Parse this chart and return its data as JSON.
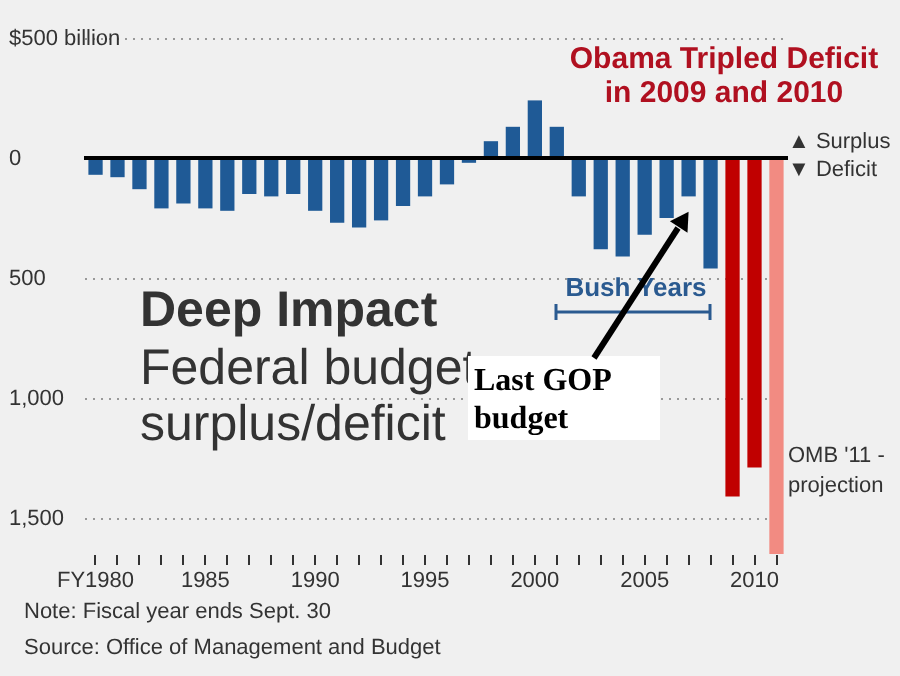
{
  "chart_data": {
    "type": "bar",
    "title": "Deep Impact",
    "subtitle": "Federal budget surplus/deficit",
    "categories": [
      "FY1980",
      null,
      null,
      null,
      null,
      "1985",
      null,
      null,
      null,
      null,
      "1990",
      null,
      null,
      null,
      null,
      "1995",
      null,
      null,
      null,
      null,
      "2000",
      null,
      null,
      null,
      null,
      "2005",
      null,
      null,
      null,
      null,
      "2010",
      null
    ],
    "values": [
      -70,
      -80,
      -130,
      -210,
      -190,
      -210,
      -220,
      -150,
      -160,
      -150,
      -220,
      -270,
      -290,
      -260,
      -200,
      -160,
      -110,
      -20,
      70,
      130,
      240,
      130,
      -160,
      -380,
      -410,
      -320,
      -250,
      -160,
      -460,
      -1410,
      -1290,
      -1650
    ],
    "colors": [
      "#1f5a96",
      "#1f5a96",
      "#1f5a96",
      "#1f5a96",
      "#1f5a96",
      "#1f5a96",
      "#1f5a96",
      "#1f5a96",
      "#1f5a96",
      "#1f5a96",
      "#1f5a96",
      "#1f5a96",
      "#1f5a96",
      "#1f5a96",
      "#1f5a96",
      "#1f5a96",
      "#1f5a96",
      "#1f5a96",
      "#1f5a96",
      "#1f5a96",
      "#1f5a96",
      "#1f5a96",
      "#1f5a96",
      "#1f5a96",
      "#1f5a96",
      "#1f5a96",
      "#1f5a96",
      "#1f5a96",
      "#1f5a96",
      "#c00000",
      "#c00000",
      "#f28b82"
    ],
    "ylim": [
      -1650,
      500
    ],
    "yticks": [
      {
        "value": 500,
        "label": "$500 billion"
      },
      0,
      {
        "value": -500,
        "label": "500"
      },
      {
        "value": -1000,
        "label": "1,000"
      },
      {
        "value": -1500,
        "label": "1,500"
      }
    ],
    "grid": "y",
    "ref_lines": [
      {
        "axis": "y",
        "value": 0,
        "color": "#000000"
      }
    ],
    "annotations": [
      "Obama Tripled Deficit in 2009 and 2010",
      "Bush Years",
      "Last GOP budget",
      "OMB '11 - projection",
      "▲ Surplus ▼ Deficit",
      "Note: Fiscal year ends Sept. 30",
      "Source: Office of Management and Budget"
    ]
  }
}
